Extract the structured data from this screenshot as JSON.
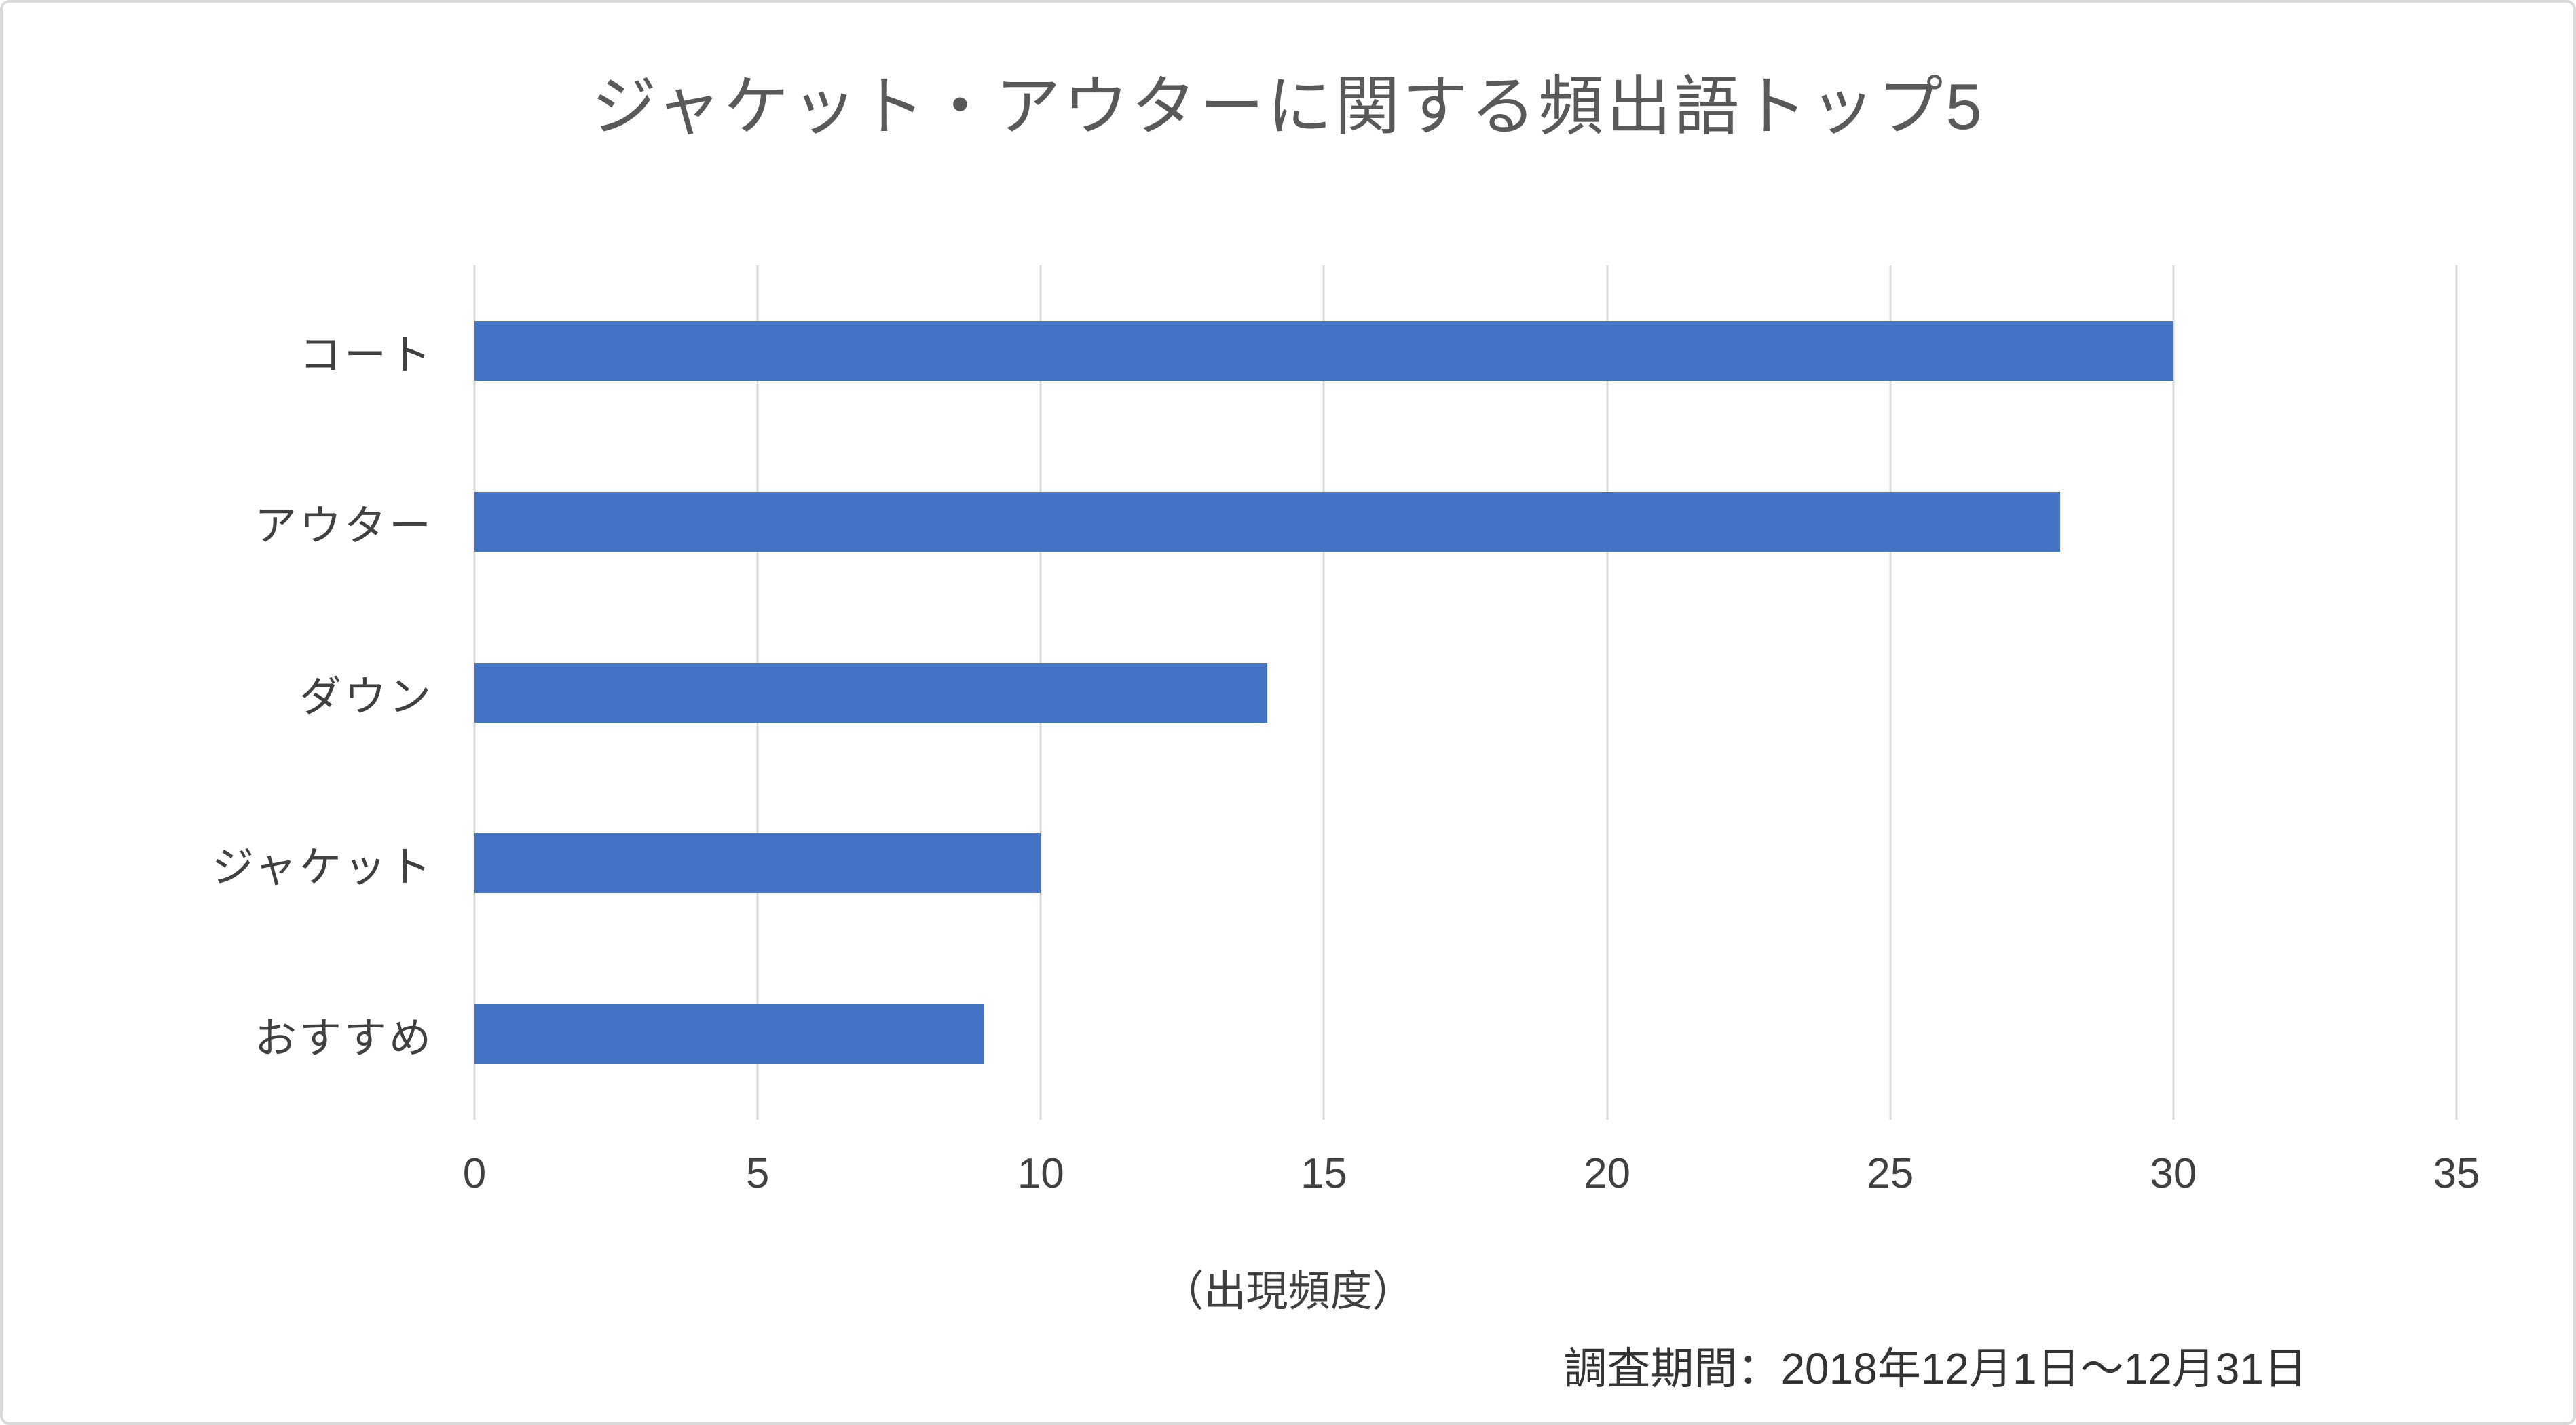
{
  "chart_data": {
    "type": "bar",
    "orientation": "horizontal",
    "title": "ジャケット・アウターに関する頻出語トップ5",
    "categories": [
      "コート",
      "アウター",
      "ダウン",
      "ジャケット",
      "おすすめ"
    ],
    "values": [
      30,
      28,
      14,
      10,
      9
    ],
    "xlabel": "（出現頻度）",
    "caption": "調査期間：2018年12月1日～12月31日",
    "xlim": [
      0,
      35
    ],
    "xticks": [
      0,
      5,
      10,
      15,
      20,
      25,
      30,
      35
    ],
    "bar_color": "#4472C4",
    "gridline_color": "#D9D9D9",
    "axis_color": "#D9D9D9",
    "grid": "vertical",
    "legend": "none"
  }
}
